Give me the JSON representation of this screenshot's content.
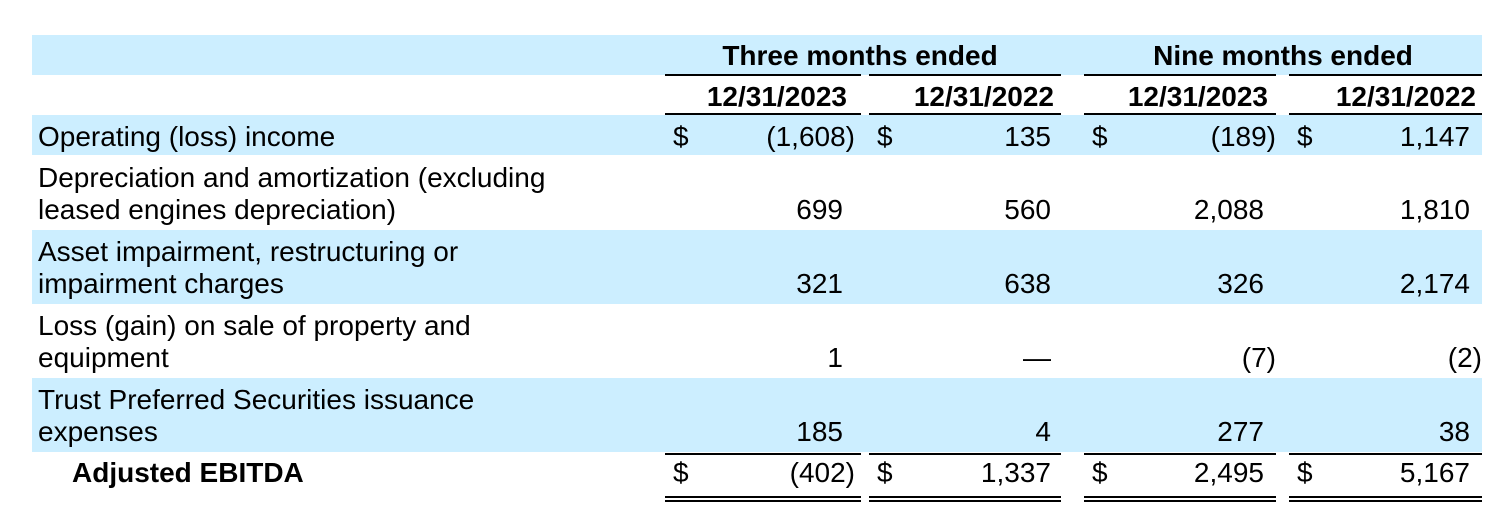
{
  "table": {
    "group_headers": [
      "Three months ended",
      "Nine months ended"
    ],
    "date_headers": [
      "12/31/2023",
      "12/31/2022",
      "12/31/2023",
      "12/31/2022"
    ],
    "currency_symbol": "$",
    "rows": [
      {
        "label": [
          "Operating (loss) income"
        ],
        "values": [
          "(1,608)",
          "135",
          "(189)",
          "1,147"
        ],
        "currency": true,
        "bold": false
      },
      {
        "label": [
          "Depreciation and amortization (excluding",
          "leased engines depreciation)"
        ],
        "values": [
          "699",
          "560",
          "2,088",
          "1,810"
        ],
        "currency": false,
        "bold": false
      },
      {
        "label": [
          "Asset impairment, restructuring or",
          "impairment charges"
        ],
        "values": [
          "321",
          "638",
          "326",
          "2,174"
        ],
        "currency": false,
        "bold": false
      },
      {
        "label": [
          "Loss (gain) on sale of property and",
          "equipment"
        ],
        "values": [
          "1",
          "—",
          "(7)",
          "(2)"
        ],
        "currency": false,
        "bold": false
      },
      {
        "label": [
          "Trust Preferred Securities issuance",
          "expenses"
        ],
        "values": [
          "185",
          "4",
          "277",
          "38"
        ],
        "currency": false,
        "bold": false
      },
      {
        "label": [
          "Adjusted EBITDA"
        ],
        "values": [
          "(402)",
          "1,337",
          "2,495",
          "5,167"
        ],
        "currency": true,
        "bold": true
      }
    ],
    "colors": {
      "band": "#cceeff",
      "text": "#000000",
      "rule": "#000000"
    }
  }
}
